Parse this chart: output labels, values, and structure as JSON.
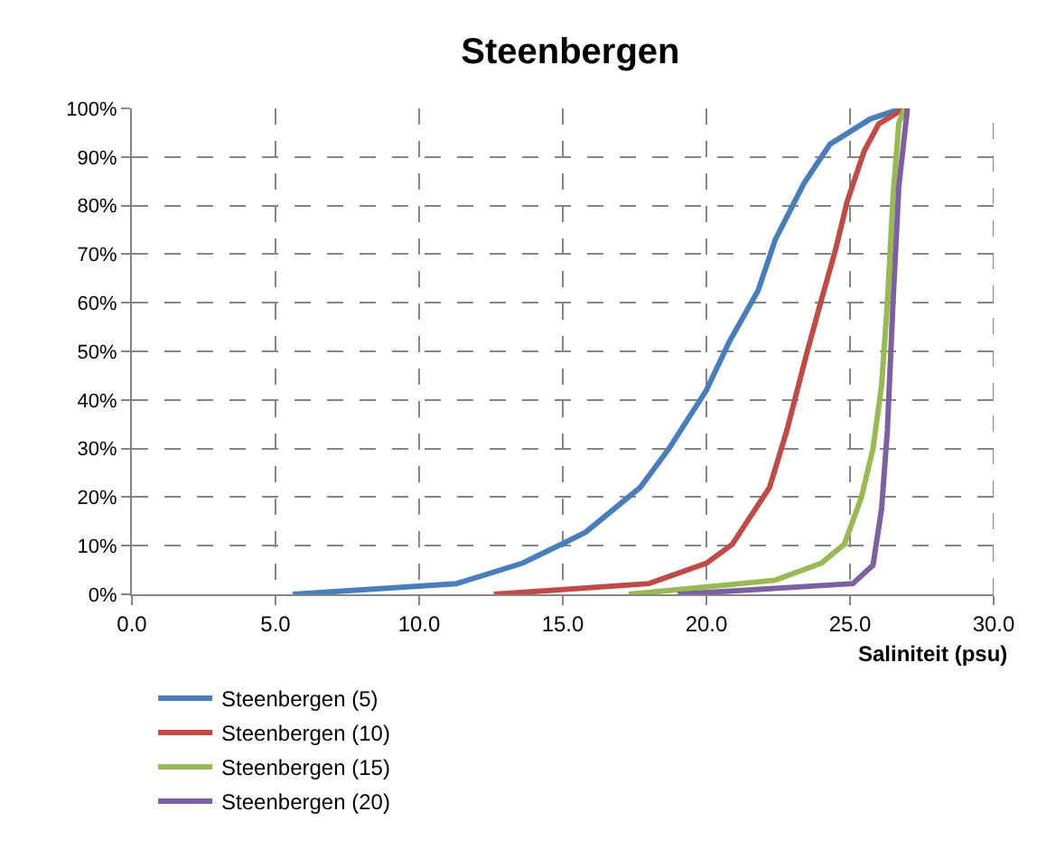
{
  "chart_data": {
    "type": "line",
    "title": "Steenbergen",
    "xlabel": "Saliniteit (psu)",
    "xlim": [
      0,
      30
    ],
    "xticks": [
      {
        "value": 0,
        "label": "0.0"
      },
      {
        "value": 5,
        "label": "5.0"
      },
      {
        "value": 10,
        "label": "10.0"
      },
      {
        "value": 15,
        "label": "15.0"
      },
      {
        "value": 20,
        "label": "20.0"
      },
      {
        "value": 25,
        "label": "25.0"
      },
      {
        "value": 30,
        "label": "30.0"
      }
    ],
    "ylim": [
      0,
      100
    ],
    "yticks": [
      {
        "value": 0,
        "label": "0%"
      },
      {
        "value": 10,
        "label": "10%"
      },
      {
        "value": 20,
        "label": "20%"
      },
      {
        "value": 30,
        "label": "30%"
      },
      {
        "value": 40,
        "label": "40%"
      },
      {
        "value": 50,
        "label": "50%"
      },
      {
        "value": 60,
        "label": "60%"
      },
      {
        "value": 70,
        "label": "70%"
      },
      {
        "value": 80,
        "label": "80%"
      },
      {
        "value": 90,
        "label": "90%"
      },
      {
        "value": 100,
        "label": "100%"
      }
    ],
    "grid": true,
    "legend": "bottom",
    "marker": "none",
    "line_style": "solid",
    "series": [
      {
        "name": "Steenbergen (5)",
        "color": "#4a7ebb",
        "x": [
          5.6,
          11.3,
          13.6,
          15.2,
          15.8,
          17.7,
          18.7,
          20.0,
          20.8,
          21.8,
          22.4,
          23.4,
          24.3,
          25.7,
          26.8
        ],
        "values": [
          0,
          2.2,
          6.4,
          11,
          12.8,
          22,
          30,
          42,
          52,
          62.5,
          73,
          84.6,
          92.6,
          97.8,
          100
        ]
      },
      {
        "name": "Steenbergen (10)",
        "color": "#be4b48",
        "x": [
          12.6,
          18.0,
          20.0,
          20.9,
          22.2,
          22.8,
          23.5,
          24.0,
          24.5,
          24.9,
          25.5,
          26.0,
          26.9
        ],
        "values": [
          0,
          2.2,
          6.4,
          10.3,
          22,
          33.7,
          49.7,
          60.5,
          71,
          80.8,
          91.3,
          96.8,
          100
        ]
      },
      {
        "name": "Steenbergen (15)",
        "color": "#98b954",
        "x": [
          17.3,
          22.4,
          24.0,
          24.8,
          25.4,
          25.8,
          26.1,
          26.3,
          26.5,
          26.7,
          26.9
        ],
        "values": [
          0,
          2.9,
          6.4,
          10.3,
          20,
          30,
          43,
          60,
          82,
          97,
          100
        ]
      },
      {
        "name": "Steenbergen (20)",
        "color": "#7d60a0",
        "x": [
          19.0,
          25.1,
          25.8,
          26.1,
          26.3,
          26.5,
          26.7,
          27.0
        ],
        "values": [
          0,
          2.2,
          6,
          17.6,
          33.7,
          60.5,
          84,
          100
        ]
      }
    ]
  }
}
